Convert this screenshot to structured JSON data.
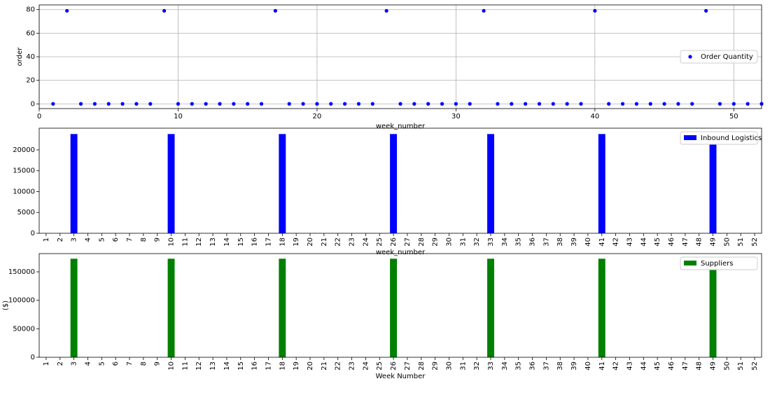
{
  "chart_data": [
    {
      "type": "scatter",
      "xlabel": "week_number",
      "ylabel": "order",
      "grid": true,
      "legend": "center right",
      "xlim": [
        0,
        52
      ],
      "ylim": [
        -4,
        84
      ],
      "xticks": [
        0,
        10,
        20,
        30,
        40,
        50
      ],
      "yticks": [
        0,
        20,
        40,
        60,
        80
      ],
      "x": [
        1,
        2,
        3,
        4,
        5,
        6,
        7,
        8,
        9,
        10,
        11,
        12,
        13,
        14,
        15,
        16,
        17,
        18,
        19,
        20,
        21,
        22,
        23,
        24,
        25,
        26,
        27,
        28,
        29,
        30,
        31,
        32,
        33,
        34,
        35,
        36,
        37,
        38,
        39,
        40,
        41,
        42,
        43,
        44,
        45,
        46,
        47,
        48,
        49,
        50,
        51,
        52
      ],
      "series": [
        {
          "name": "Order Quantity",
          "color": "blue",
          "values": [
            0,
            79,
            0,
            0,
            0,
            0,
            0,
            0,
            79,
            0,
            0,
            0,
            0,
            0,
            0,
            0,
            79,
            0,
            0,
            0,
            0,
            0,
            0,
            0,
            79,
            0,
            0,
            0,
            0,
            0,
            0,
            79,
            0,
            0,
            0,
            0,
            0,
            0,
            0,
            79,
            0,
            0,
            0,
            0,
            0,
            0,
            0,
            79,
            0,
            0,
            0,
            0
          ]
        }
      ]
    },
    {
      "type": "bar",
      "xlabel": "week_number",
      "grid": false,
      "legend": "upper right",
      "ylim": [
        0,
        25200
      ],
      "yticks": [
        0,
        5000,
        10000,
        15000,
        20000
      ],
      "categories": [
        "1",
        "2",
        "3",
        "4",
        "5",
        "6",
        "7",
        "8",
        "9",
        "10",
        "11",
        "12",
        "13",
        "14",
        "15",
        "16",
        "17",
        "18",
        "19",
        "20",
        "21",
        "22",
        "23",
        "24",
        "25",
        "26",
        "27",
        "28",
        "29",
        "30",
        "31",
        "32",
        "33",
        "34",
        "35",
        "36",
        "37",
        "38",
        "39",
        "40",
        "41",
        "42",
        "43",
        "44",
        "45",
        "46",
        "47",
        "48",
        "49",
        "50",
        "51",
        "52"
      ],
      "series": [
        {
          "name": "Inbound Logistics",
          "color": "blue",
          "values": [
            0,
            0,
            23800,
            0,
            0,
            0,
            0,
            0,
            0,
            23800,
            0,
            0,
            0,
            0,
            0,
            0,
            0,
            23800,
            0,
            0,
            0,
            0,
            0,
            0,
            0,
            23800,
            0,
            0,
            0,
            0,
            0,
            0,
            23800,
            0,
            0,
            0,
            0,
            0,
            0,
            0,
            23800,
            0,
            0,
            0,
            0,
            0,
            0,
            0,
            23800,
            0,
            0,
            0
          ]
        }
      ]
    },
    {
      "type": "bar",
      "xlabel": "Week Number",
      "ylabel": "($)",
      "grid": false,
      "legend": "upper right",
      "ylim": [
        0,
        182000
      ],
      "yticks": [
        0,
        50000,
        100000,
        150000
      ],
      "categories": [
        "1",
        "2",
        "3",
        "4",
        "5",
        "6",
        "7",
        "8",
        "9",
        "10",
        "11",
        "12",
        "13",
        "14",
        "15",
        "16",
        "17",
        "18",
        "19",
        "20",
        "21",
        "22",
        "23",
        "24",
        "25",
        "26",
        "27",
        "28",
        "29",
        "30",
        "31",
        "32",
        "33",
        "34",
        "35",
        "36",
        "37",
        "38",
        "39",
        "40",
        "41",
        "42",
        "43",
        "44",
        "45",
        "46",
        "47",
        "48",
        "49",
        "50",
        "51",
        "52"
      ],
      "series": [
        {
          "name": "Suppliers",
          "color": "green",
          "values": [
            0,
            0,
            173000,
            0,
            0,
            0,
            0,
            0,
            0,
            173000,
            0,
            0,
            0,
            0,
            0,
            0,
            0,
            173000,
            0,
            0,
            0,
            0,
            0,
            0,
            0,
            173000,
            0,
            0,
            0,
            0,
            0,
            0,
            173000,
            0,
            0,
            0,
            0,
            0,
            0,
            0,
            173000,
            0,
            0,
            0,
            0,
            0,
            0,
            0,
            173000,
            0,
            0,
            0
          ]
        }
      ]
    }
  ]
}
